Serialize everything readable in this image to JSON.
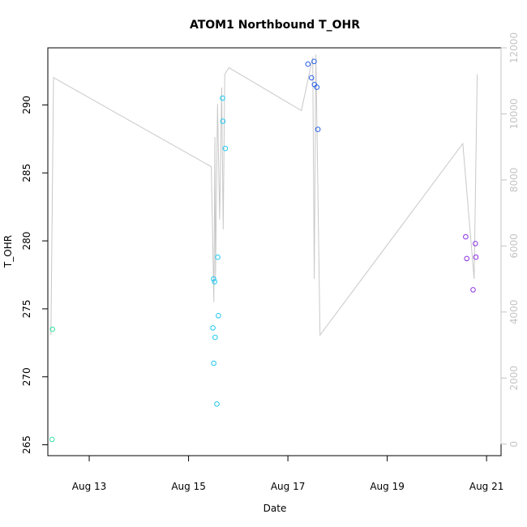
{
  "chart_data": {
    "type": "scatter",
    "title": "ATOM1 Northbound T_OHR",
    "xlabel": "Date",
    "ylabel": "T_OHR",
    "x_ticks": [
      "Aug 13",
      "Aug 15",
      "Aug 17",
      "Aug 19",
      "Aug 21"
    ],
    "y_ticks": [
      265,
      270,
      275,
      280,
      285,
      290
    ],
    "y2_ticks": [
      0,
      2000,
      4000,
      6000,
      8000,
      10000,
      12000
    ],
    "xlim": [
      "2016-08-12 04:00",
      "2016-08-21 07:00"
    ],
    "ylim": [
      264.2,
      294.2
    ],
    "y2lim": [
      -350,
      12000
    ],
    "grid": false,
    "colors": {
      "secondary": "#c4c4c4",
      "line": "#c8c8c8",
      "green": "#33e0a0",
      "cyan": "#1ec8f0",
      "blue": "#2860e8",
      "purple": "#8a2fe0"
    },
    "points": [
      {
        "date": "2016-08-12 06:05",
        "value": 265.4,
        "color": "green"
      },
      {
        "date": "2016-08-12 06:15",
        "value": 273.5,
        "color": "green"
      },
      {
        "date": "2016-08-15 11:45",
        "value": 273.6,
        "color": "cyan"
      },
      {
        "date": "2016-08-15 12:05",
        "value": 277.2,
        "color": "cyan"
      },
      {
        "date": "2016-08-15 12:10",
        "value": 271.0,
        "color": "cyan"
      },
      {
        "date": "2016-08-15 12:35",
        "value": 277.0,
        "color": "cyan"
      },
      {
        "date": "2016-08-15 12:50",
        "value": 272.9,
        "color": "cyan"
      },
      {
        "date": "2016-08-15 13:40",
        "value": 268.0,
        "color": "cyan"
      },
      {
        "date": "2016-08-15 14:05",
        "value": 278.8,
        "color": "cyan"
      },
      {
        "date": "2016-08-15 14:25",
        "value": 274.5,
        "color": "cyan"
      },
      {
        "date": "2016-08-15 16:25",
        "value": 290.5,
        "color": "cyan"
      },
      {
        "date": "2016-08-15 16:35",
        "value": 288.8,
        "color": "cyan"
      },
      {
        "date": "2016-08-15 17:45",
        "value": 286.8,
        "color": "cyan"
      },
      {
        "date": "2016-08-17 09:40",
        "value": 293.0,
        "color": "blue"
      },
      {
        "date": "2016-08-17 11:25",
        "value": 292.0,
        "color": "blue"
      },
      {
        "date": "2016-08-17 12:40",
        "value": 293.2,
        "color": "blue"
      },
      {
        "date": "2016-08-17 12:50",
        "value": 291.5,
        "color": "blue"
      },
      {
        "date": "2016-08-17 14:00",
        "value": 291.3,
        "color": "blue"
      },
      {
        "date": "2016-08-17 14:30",
        "value": 288.2,
        "color": "blue"
      },
      {
        "date": "2016-08-20 13:55",
        "value": 280.3,
        "color": "purple"
      },
      {
        "date": "2016-08-20 14:25",
        "value": 278.7,
        "color": "purple"
      },
      {
        "date": "2016-08-20 17:30",
        "value": 276.4,
        "color": "purple"
      },
      {
        "date": "2016-08-20 18:35",
        "value": 279.8,
        "color": "purple"
      },
      {
        "date": "2016-08-20 18:50",
        "value": 278.8,
        "color": "purple"
      }
    ],
    "secondary_line": [
      {
        "date": "2016-08-12 05:30",
        "value": 3300
      },
      {
        "date": "2016-08-12 06:45",
        "value": 11100
      },
      {
        "date": "2016-08-15 11:00",
        "value": 8400
      },
      {
        "date": "2016-08-15 12:15",
        "value": 4300
      },
      {
        "date": "2016-08-15 12:45",
        "value": 9300
      },
      {
        "date": "2016-08-15 13:00",
        "value": 5000
      },
      {
        "date": "2016-08-15 14:00",
        "value": 10300
      },
      {
        "date": "2016-08-15 15:00",
        "value": 6800
      },
      {
        "date": "2016-08-15 16:00",
        "value": 10800
      },
      {
        "date": "2016-08-15 16:45",
        "value": 6500
      },
      {
        "date": "2016-08-15 17:30",
        "value": 11200
      },
      {
        "date": "2016-08-15 19:30",
        "value": 11400
      },
      {
        "date": "2016-08-17 06:30",
        "value": 10100
      },
      {
        "date": "2016-08-17 12:00",
        "value": 11700
      },
      {
        "date": "2016-08-17 12:45",
        "value": 5000
      },
      {
        "date": "2016-08-17 13:30",
        "value": 11800
      },
      {
        "date": "2016-08-17 15:30",
        "value": 3300
      },
      {
        "date": "2016-08-20 12:30",
        "value": 9100
      },
      {
        "date": "2016-08-20 18:00",
        "value": 5000
      },
      {
        "date": "2016-08-20 19:30",
        "value": 11200
      }
    ]
  }
}
